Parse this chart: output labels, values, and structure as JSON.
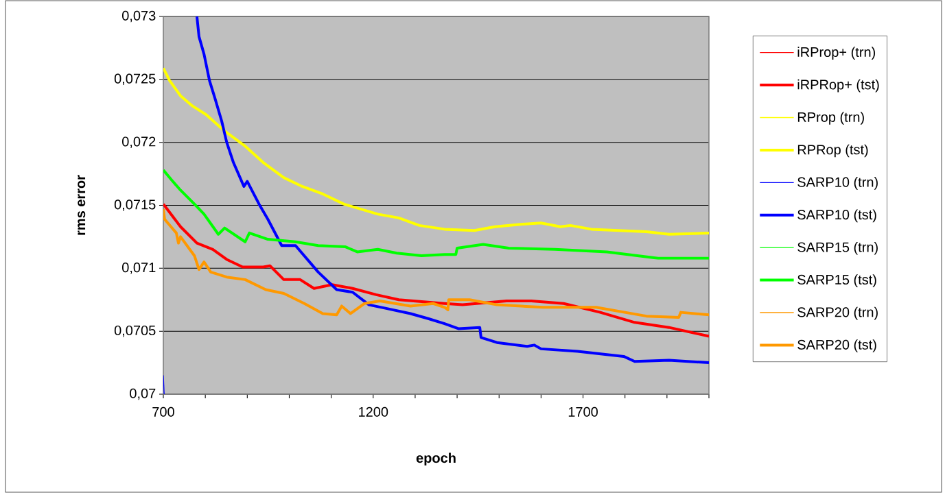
{
  "chart_data": {
    "type": "line",
    "xlabel": "epoch",
    "ylabel": "rms error",
    "xlim": [
      700,
      2000
    ],
    "ylim": [
      0.07,
      0.073
    ],
    "xticks": [
      700,
      {
        "value": 800,
        "label": null
      },
      {
        "value": 900,
        "label": null
      },
      {
        "value": 1000,
        "label": null
      },
      {
        "value": 1100,
        "label": null
      },
      1200,
      {
        "value": 1300,
        "label": null
      },
      {
        "value": 1400,
        "label": null
      },
      {
        "value": 1500,
        "label": null
      },
      {
        "value": 1600,
        "label": null
      },
      1700,
      {
        "value": 1800,
        "label": null
      },
      {
        "value": 1900,
        "label": null
      },
      {
        "value": 2000,
        "label": null
      }
    ],
    "yticks": [
      {
        "value": 0.07,
        "label": "0,07"
      },
      {
        "value": 0.0705,
        "label": "0,0705"
      },
      {
        "value": 0.071,
        "label": "0,071"
      },
      {
        "value": 0.0715,
        "label": "0,0715"
      },
      {
        "value": 0.072,
        "label": "0,072"
      },
      {
        "value": 0.0725,
        "label": "0,0725"
      },
      {
        "value": 0.073,
        "label": "0,073"
      }
    ],
    "grid": "y",
    "legend": "right",
    "marker": "none",
    "line_style": "solid",
    "series": [
      {
        "name": "iRProp+ (trn)",
        "color": "#ff0000"
      },
      {
        "name": "iRPRop+ (tst)",
        "color": "#ff0000",
        "x": [
          700,
          741,
          780,
          818,
          851,
          889,
          938,
          954,
          987,
          1026,
          1059,
          1102,
          1151,
          1207,
          1261,
          1370,
          1413,
          1518,
          1577,
          1654,
          1741,
          1823,
          1905,
          2000
        ],
        "values": [
          0.07151,
          0.07133,
          0.0712,
          0.07115,
          0.07107,
          0.07101,
          0.07101,
          0.07102,
          0.07091,
          0.07091,
          0.07084,
          0.07087,
          0.07084,
          0.07079,
          0.07075,
          0.07072,
          0.07071,
          0.07074,
          0.07074,
          0.07072,
          0.07065,
          0.07057,
          0.07053,
          0.07046
        ]
      },
      {
        "name": "RProp (trn)",
        "color": "#ffff00"
      },
      {
        "name": "RPRop (tst)",
        "color": "#ffff00",
        "x": [
          700,
          715,
          741,
          769,
          802,
          846,
          895,
          938,
          987,
          1031,
          1080,
          1130,
          1211,
          1261,
          1310,
          1370,
          1441,
          1490,
          1556,
          1600,
          1646,
          1670,
          1720,
          1785,
          1851,
          1905,
          2000
        ],
        "values": [
          0.07259,
          0.07249,
          0.07237,
          0.07229,
          0.07222,
          0.07209,
          0.07197,
          0.07184,
          0.07172,
          0.07165,
          0.07159,
          0.07151,
          0.07143,
          0.0714,
          0.07134,
          0.07131,
          0.0713,
          0.07133,
          0.07135,
          0.07136,
          0.07133,
          0.07134,
          0.07131,
          0.0713,
          0.07129,
          0.07127,
          0.07128
        ]
      },
      {
        "name": "SARP10 (trn)",
        "color": "#0000ff",
        "x": [
          700,
          702
        ],
        "values": [
          0.07015,
          0.07
        ]
      },
      {
        "name": "SARP10 (tst)",
        "color": "#0000ff",
        "x": [
          780,
          785,
          797,
          810,
          823,
          839,
          851,
          867,
          892,
          900,
          928,
          949,
          982,
          1015,
          1069,
          1113,
          1151,
          1190,
          1233,
          1289,
          1331,
          1370,
          1403,
          1454,
          1457,
          1495,
          1567,
          1584,
          1600,
          1687,
          1797,
          1823,
          1905,
          2000
        ],
        "values": [
          0.073,
          0.07284,
          0.0727,
          0.07249,
          0.07235,
          0.07217,
          0.072,
          0.07184,
          0.07165,
          0.07169,
          0.07151,
          0.07139,
          0.07118,
          0.07118,
          0.07097,
          0.07083,
          0.07081,
          0.07071,
          0.07068,
          0.07064,
          0.0706,
          0.07056,
          0.07052,
          0.07053,
          0.07045,
          0.07041,
          0.07038,
          0.07039,
          0.07036,
          0.07034,
          0.0703,
          0.07026,
          0.07027,
          0.07025
        ]
      },
      {
        "name": "SARP15 (trn)",
        "color": "#00ff00"
      },
      {
        "name": "SARP15 (tst)",
        "color": "#00ff00",
        "x": [
          700,
          720,
          741,
          774,
          797,
          831,
          846,
          895,
          905,
          949,
          1015,
          1069,
          1134,
          1162,
          1211,
          1256,
          1315,
          1370,
          1397,
          1400,
          1462,
          1523,
          1633,
          1757,
          1879,
          2000
        ],
        "values": [
          0.07178,
          0.0717,
          0.07162,
          0.07151,
          0.07143,
          0.07127,
          0.07132,
          0.07121,
          0.07128,
          0.07123,
          0.07121,
          0.07118,
          0.07117,
          0.07113,
          0.07115,
          0.07112,
          0.0711,
          0.07111,
          0.07111,
          0.07116,
          0.07119,
          0.07116,
          0.07115,
          0.07113,
          0.07108,
          0.07108
        ]
      },
      {
        "name": "SARP20 (trn)",
        "color": "#ff9900"
      },
      {
        "name": "SARP20 (tst)",
        "color": "#ff9900",
        "x": [
          700,
          703,
          731,
          736,
          741,
          774,
          785,
          797,
          813,
          851,
          895,
          944,
          987,
          1036,
          1080,
          1113,
          1125,
          1146,
          1179,
          1216,
          1289,
          1343,
          1370,
          1378,
          1380,
          1430,
          1495,
          1605,
          1731,
          1851,
          1928,
          1933,
          2000
        ],
        "values": [
          0.07147,
          0.07139,
          0.07128,
          0.0712,
          0.07125,
          0.0711,
          0.07099,
          0.07105,
          0.07097,
          0.07093,
          0.07091,
          0.07083,
          0.0708,
          0.07072,
          0.07064,
          0.07063,
          0.0707,
          0.07064,
          0.07072,
          0.07074,
          0.0707,
          0.07072,
          0.07069,
          0.07067,
          0.07075,
          0.07075,
          0.07071,
          0.07069,
          0.07069,
          0.07062,
          0.07061,
          0.07065,
          0.07063
        ]
      }
    ]
  }
}
